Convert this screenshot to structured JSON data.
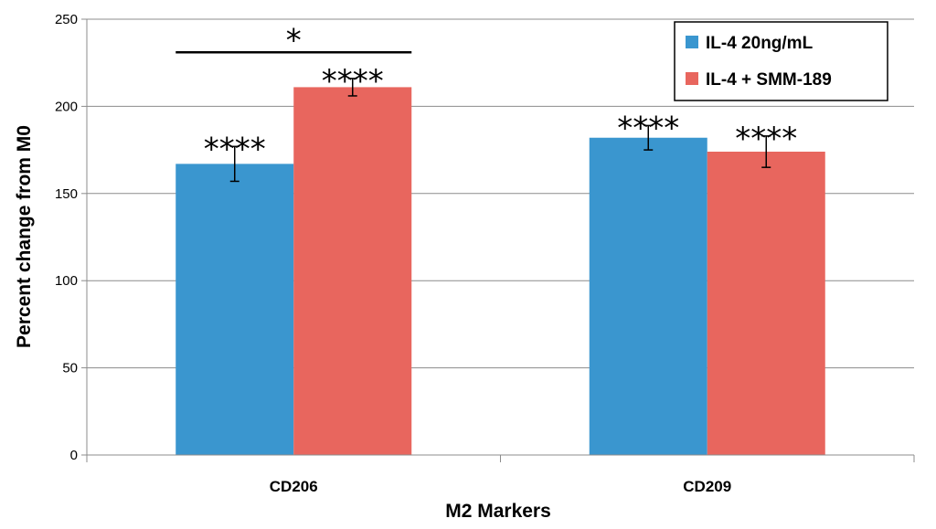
{
  "chart_data": {
    "type": "bar",
    "title": "",
    "xlabel": "M2 Markers",
    "ylabel": "Percent change from M0",
    "ylim": [
      0,
      250
    ],
    "yticks": [
      0,
      50,
      100,
      150,
      200,
      250
    ],
    "grid": true,
    "legend_position": "top-right",
    "categories": [
      "CD206",
      "CD209"
    ],
    "series": [
      {
        "name": "IL-4 20ng/mL",
        "color": "#3a96cf",
        "values": [
          167,
          182
        ],
        "errors": [
          10,
          7
        ],
        "labels": [
          "****",
          "****"
        ]
      },
      {
        "name": "IL-4 + SMM-189",
        "color": "#e8665e",
        "values": [
          211,
          174
        ],
        "errors": [
          5,
          9
        ],
        "labels": [
          "****",
          "****"
        ]
      }
    ],
    "bracket": {
      "category": "CD206",
      "value": 231,
      "label": "*"
    }
  }
}
